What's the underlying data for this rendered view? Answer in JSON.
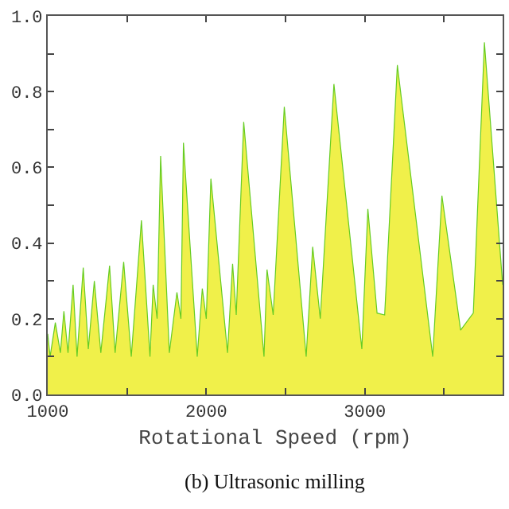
{
  "chart_data": {
    "type": "area",
    "xlabel": "Rotational Speed (rpm)",
    "annotations": [
      "(b) Ultrasonic milling"
    ],
    "x": [
      1000,
      1015,
      1048,
      1080,
      1102,
      1128,
      1160,
      1185,
      1224,
      1256,
      1294,
      1335,
      1390,
      1425,
      1479,
      1527,
      1591,
      1645,
      1665,
      1690,
      1712,
      1767,
      1815,
      1840,
      1856,
      1943,
      1975,
      2000,
      2029,
      2134,
      2166,
      2189,
      2236,
      2364,
      2383,
      2422,
      2492,
      2630,
      2671,
      2719,
      2805,
      2981,
      3019,
      3077,
      3125,
      3205,
      3428,
      3486,
      3604,
      3684,
      3754,
      3869
    ],
    "series": [
      {
        "color": "#66cc22",
        "values": [
          0.16,
          0.1,
          0.19,
          0.11,
          0.22,
          0.11,
          0.29,
          0.1,
          0.335,
          0.12,
          0.3,
          0.11,
          0.34,
          0.11,
          0.35,
          0.1,
          0.46,
          0.1,
          0.29,
          0.2,
          0.63,
          0.11,
          0.27,
          0.2,
          0.665,
          0.1,
          0.28,
          0.2,
          0.57,
          0.11,
          0.345,
          0.21,
          0.72,
          0.1,
          0.33,
          0.21,
          0.76,
          0.1,
          0.39,
          0.2,
          0.82,
          0.12,
          0.49,
          0.215,
          0.21,
          0.87,
          0.1,
          0.525,
          0.17,
          0.215,
          0.93,
          0.29
        ]
      }
    ],
    "xlim": [
      1000,
      3869
    ],
    "xticks": [
      1000,
      {
        "value": 1500,
        "label": null
      },
      2000,
      {
        "value": 2500,
        "label": null
      },
      3000,
      {
        "value": 3500,
        "label": null
      }
    ],
    "ylim": [
      0,
      1.0
    ],
    "yticks": [
      {
        "value": 0,
        "label": "0.0"
      },
      {
        "value": 0.1,
        "label": null
      },
      0.2,
      {
        "value": 0.3,
        "label": null
      },
      0.4,
      {
        "value": 0.5,
        "label": null
      },
      0.6,
      {
        "value": 0.7,
        "label": null
      },
      0.8,
      {
        "value": 0.9,
        "label": null
      },
      {
        "value": 1.0,
        "label": "1.0"
      }
    ],
    "marker": "none"
  }
}
